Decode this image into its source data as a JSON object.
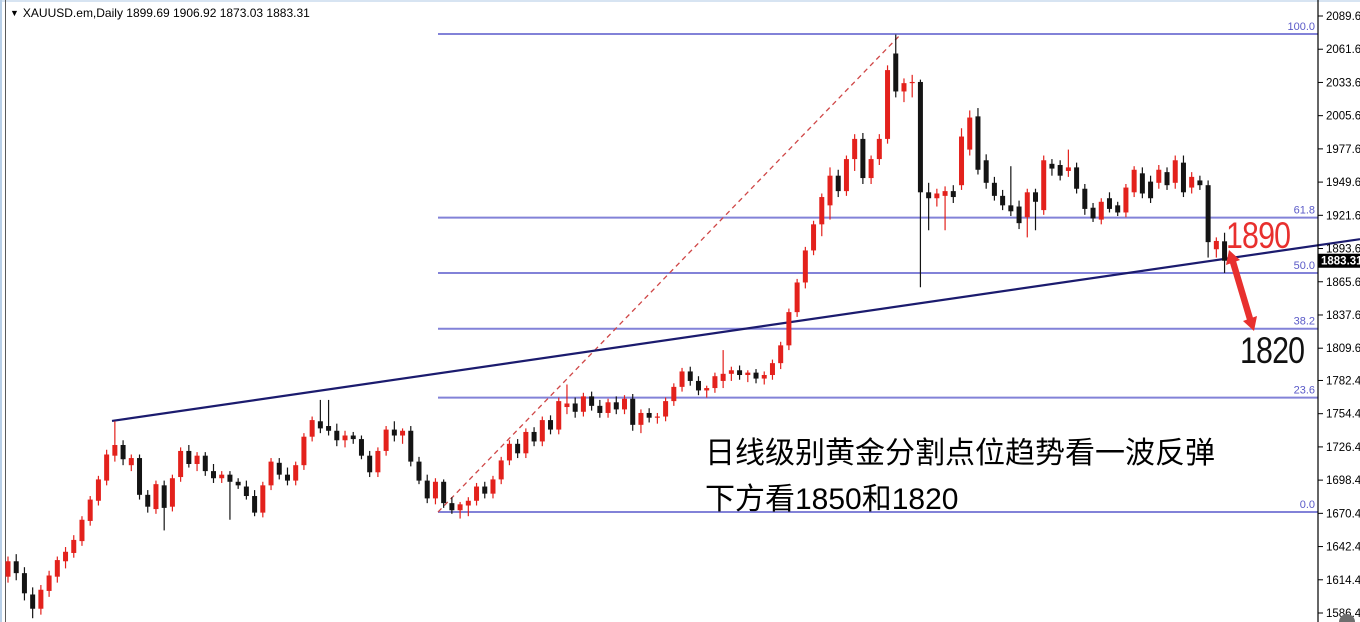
{
  "window": {
    "title_symbol": "XAUUSD.em,Daily",
    "title_ohlc": " 1899.69 1906.92 1873.03 1883.31",
    "dropdown_icon": "triangle-down"
  },
  "annotations": {
    "level_1890": "1890",
    "level_1820": "1820",
    "note_line1": "日线级别黄金分割点位趋势看一波反弹",
    "note_line2": "下方看1850和1820",
    "color_1890": "#e8302e",
    "color_1820": "#111111",
    "arrow_color": "#e8302e"
  },
  "price_tag": {
    "value": "1883.31",
    "bg": "#000000",
    "fg": "#ffffff"
  },
  "decor": {
    "corner_dot_color": "#6e6e6e"
  },
  "chart_data": {
    "type": "candlestick",
    "symbol": "XAUUSD.em",
    "timeframe": "Daily",
    "title": "XAUUSD.em,Daily",
    "last_ohlc": {
      "open": 1899.69,
      "high": 1906.92,
      "low": 1873.03,
      "close": 1883.31
    },
    "ylim": [
      1586.4,
      2089.6
    ],
    "grid": "off",
    "y_axis_ticks": [
      "2089.60",
      "2061.60",
      "2033.60",
      "2005.60",
      "1977.60",
      "1949.60",
      "1921.60",
      "1893.60",
      "1865.60",
      "1837.60",
      "1809.60",
      "1782.40",
      "1754.40",
      "1726.40",
      "1698.40",
      "1670.40",
      "1642.40",
      "1614.40",
      "1586.40"
    ],
    "colors": {
      "up": "#e3211c",
      "down": "#141414",
      "fib": "#8282d8",
      "fib_label": "#5a5ac8",
      "trend": "#1b1b6e",
      "impulse": "#cf4646",
      "axis": "#000000"
    },
    "fib_levels": [
      {
        "label": "100.0",
        "price": 2074.4
      },
      {
        "label": "61.8",
        "price": 1919.7
      },
      {
        "label": "50.0",
        "price": 1873.0
      },
      {
        "label": "38.2",
        "price": 1826.0
      },
      {
        "label": "23.6",
        "price": 1767.9
      },
      {
        "label": "0.0",
        "price": 1671.5
      }
    ],
    "trendline": {
      "price_start": 1748.3,
      "price_end": 1901.5
    },
    "impulse_line": {
      "from_price": 1671.5,
      "to_price": 2074.4
    },
    "candles": [
      [
        1617,
        1634,
        1612,
        1630
      ],
      [
        1630,
        1636,
        1614,
        1620
      ],
      [
        1620,
        1625,
        1597,
        1603
      ],
      [
        1602,
        1608,
        1582,
        1590
      ],
      [
        1590,
        1610,
        1585,
        1606
      ],
      [
        1605,
        1622,
        1600,
        1618
      ],
      [
        1617,
        1634,
        1612,
        1631
      ],
      [
        1630,
        1642,
        1624,
        1638
      ],
      [
        1637,
        1652,
        1633,
        1648
      ],
      [
        1647,
        1668,
        1643,
        1665
      ],
      [
        1664,
        1685,
        1660,
        1682
      ],
      [
        1681,
        1702,
        1677,
        1699
      ],
      [
        1698,
        1724,
        1694,
        1720
      ],
      [
        1719,
        1748,
        1714,
        1728
      ],
      [
        1728,
        1732,
        1711,
        1716
      ],
      [
        1711,
        1720,
        1706,
        1717
      ],
      [
        1717,
        1720,
        1682,
        1686
      ],
      [
        1686,
        1690,
        1671,
        1676
      ],
      [
        1674,
        1698,
        1670,
        1695
      ],
      [
        1694,
        1698,
        1656,
        1675
      ],
      [
        1676,
        1703,
        1672,
        1700
      ],
      [
        1701,
        1726,
        1697,
        1723
      ],
      [
        1723,
        1728,
        1709,
        1712
      ],
      [
        1712,
        1722,
        1706,
        1719
      ],
      [
        1719,
        1722,
        1702,
        1706
      ],
      [
        1706,
        1712,
        1696,
        1700
      ],
      [
        1700,
        1706,
        1696,
        1703
      ],
      [
        1703,
        1706,
        1665,
        1697
      ],
      [
        1697,
        1700,
        1691,
        1694
      ],
      [
        1693,
        1698,
        1682,
        1685
      ],
      [
        1685,
        1690,
        1668,
        1671
      ],
      [
        1671,
        1697,
        1667,
        1694
      ],
      [
        1694,
        1717,
        1690,
        1714
      ],
      [
        1713,
        1717,
        1699,
        1703
      ],
      [
        1703,
        1709,
        1694,
        1698
      ],
      [
        1698,
        1714,
        1694,
        1711
      ],
      [
        1711,
        1738,
        1707,
        1735
      ],
      [
        1735,
        1752,
        1731,
        1749
      ],
      [
        1748,
        1766,
        1738,
        1742
      ],
      [
        1744,
        1766,
        1736,
        1740
      ],
      [
        1740,
        1746,
        1727,
        1732
      ],
      [
        1732,
        1740,
        1726,
        1736
      ],
      [
        1736,
        1739,
        1729,
        1733
      ],
      [
        1733,
        1736,
        1716,
        1719
      ],
      [
        1719,
        1723,
        1701,
        1705
      ],
      [
        1705,
        1726,
        1701,
        1723
      ],
      [
        1723,
        1744,
        1719,
        1741
      ],
      [
        1741,
        1748,
        1731,
        1736
      ],
      [
        1736,
        1742,
        1729,
        1740
      ],
      [
        1740,
        1744,
        1710,
        1714
      ],
      [
        1714,
        1718,
        1695,
        1698
      ],
      [
        1698,
        1703,
        1679,
        1683
      ],
      [
        1683,
        1700,
        1678,
        1697
      ],
      [
        1697,
        1699,
        1675,
        1679
      ],
      [
        1679,
        1684,
        1670,
        1673
      ],
      [
        1673,
        1680,
        1666,
        1678
      ],
      [
        1677,
        1684,
        1668,
        1681
      ],
      [
        1681,
        1696,
        1677,
        1693
      ],
      [
        1693,
        1697,
        1683,
        1687
      ],
      [
        1687,
        1702,
        1683,
        1699
      ],
      [
        1699,
        1718,
        1695,
        1715
      ],
      [
        1715,
        1732,
        1711,
        1729
      ],
      [
        1729,
        1733,
        1717,
        1721
      ],
      [
        1721,
        1742,
        1717,
        1739
      ],
      [
        1739,
        1743,
        1727,
        1731
      ],
      [
        1731,
        1752,
        1727,
        1749
      ],
      [
        1749,
        1753,
        1737,
        1741
      ],
      [
        1741,
        1768,
        1737,
        1765
      ],
      [
        1760,
        1779,
        1754,
        1763
      ],
      [
        1763,
        1768,
        1751,
        1756
      ],
      [
        1756,
        1772,
        1752,
        1769
      ],
      [
        1769,
        1773,
        1757,
        1761
      ],
      [
        1761,
        1766,
        1751,
        1755
      ],
      [
        1755,
        1767,
        1751,
        1764
      ],
      [
        1764,
        1769,
        1754,
        1758
      ],
      [
        1758,
        1770,
        1754,
        1767
      ],
      [
        1767,
        1771,
        1740,
        1745
      ],
      [
        1745,
        1758,
        1738,
        1755
      ],
      [
        1755,
        1759,
        1747,
        1751
      ],
      [
        1751,
        1755,
        1746,
        1752
      ],
      [
        1752,
        1768,
        1748,
        1765
      ],
      [
        1765,
        1780,
        1761,
        1777
      ],
      [
        1777,
        1793,
        1773,
        1790
      ],
      [
        1790,
        1794,
        1778,
        1782
      ],
      [
        1782,
        1786,
        1770,
        1774
      ],
      [
        1774,
        1778,
        1768,
        1776
      ],
      [
        1776,
        1789,
        1772,
        1786
      ],
      [
        1782,
        1808,
        1776,
        1788
      ],
      [
        1788,
        1794,
        1782,
        1791
      ],
      [
        1791,
        1795,
        1783,
        1787
      ],
      [
        1787,
        1791,
        1781,
        1789
      ],
      [
        1789,
        1792,
        1780,
        1784
      ],
      [
        1784,
        1790,
        1779,
        1787
      ],
      [
        1787,
        1800,
        1783,
        1797
      ],
      [
        1797,
        1815,
        1792,
        1812
      ],
      [
        1812,
        1843,
        1808,
        1840
      ],
      [
        1840,
        1868,
        1836,
        1865
      ],
      [
        1865,
        1895,
        1860,
        1892
      ],
      [
        1892,
        1917,
        1888,
        1914
      ],
      [
        1914,
        1940,
        1904,
        1937
      ],
      [
        1930,
        1962,
        1918,
        1955
      ],
      [
        1955,
        1960,
        1937,
        1942
      ],
      [
        1942,
        1972,
        1938,
        1969
      ],
      [
        1969,
        1990,
        1959,
        1986
      ],
      [
        1986,
        1991,
        1948,
        1953
      ],
      [
        1953,
        1972,
        1948,
        1969
      ],
      [
        1969,
        1990,
        1964,
        1986
      ],
      [
        1986,
        2048,
        1982,
        2044
      ],
      [
        2058,
        2074,
        2021,
        2026
      ],
      [
        2026,
        2037,
        2017,
        2033
      ],
      [
        2033,
        2040,
        2021,
        2034
      ],
      [
        2034,
        2036,
        1861,
        1941
      ],
      [
        1941,
        1949,
        1909,
        1936
      ],
      [
        1936,
        1944,
        1929,
        1940
      ],
      [
        1938,
        1946,
        1909,
        1942
      ],
      [
        1942,
        1947,
        1932,
        1937
      ],
      [
        1947,
        1995,
        1943,
        1988
      ],
      [
        1977,
        2010,
        1972,
        2004
      ],
      [
        2005,
        2012,
        1956,
        1960
      ],
      [
        1968,
        1973,
        1944,
        1949
      ],
      [
        1949,
        1954,
        1934,
        1938
      ],
      [
        1938,
        1943,
        1926,
        1930
      ],
      [
        1930,
        1963,
        1921,
        1925
      ],
      [
        1929,
        1934,
        1910,
        1915
      ],
      [
        1920,
        1944,
        1903,
        1941
      ],
      [
        1941,
        1944,
        1909,
        1933
      ],
      [
        1926,
        1972,
        1922,
        1968
      ],
      [
        1965,
        1969,
        1955,
        1961
      ],
      [
        1964,
        1968,
        1951,
        1955
      ],
      [
        1959,
        1977,
        1954,
        1962
      ],
      [
        1962,
        1966,
        1940,
        1944
      ],
      [
        1944,
        1948,
        1922,
        1927
      ],
      [
        1928,
        1932,
        1916,
        1919
      ],
      [
        1918,
        1936,
        1914,
        1933
      ],
      [
        1936,
        1941,
        1924,
        1927
      ],
      [
        1930,
        1933,
        1921,
        1924
      ],
      [
        1924,
        1948,
        1920,
        1945
      ],
      [
        1941,
        1963,
        1937,
        1960
      ],
      [
        1957,
        1962,
        1936,
        1940
      ],
      [
        1950,
        1955,
        1932,
        1936
      ],
      [
        1949,
        1964,
        1944,
        1960
      ],
      [
        1958,
        1962,
        1943,
        1947
      ],
      [
        1949,
        1972,
        1944,
        1968
      ],
      [
        1966,
        1972,
        1937,
        1941
      ],
      [
        1945,
        1958,
        1940,
        1954
      ],
      [
        1951,
        1955,
        1943,
        1947
      ],
      [
        1947,
        1951,
        1886,
        1899
      ],
      [
        1893,
        1903,
        1886,
        1900
      ],
      [
        1899.69,
        1906.92,
        1873.03,
        1883.31
      ]
    ]
  }
}
